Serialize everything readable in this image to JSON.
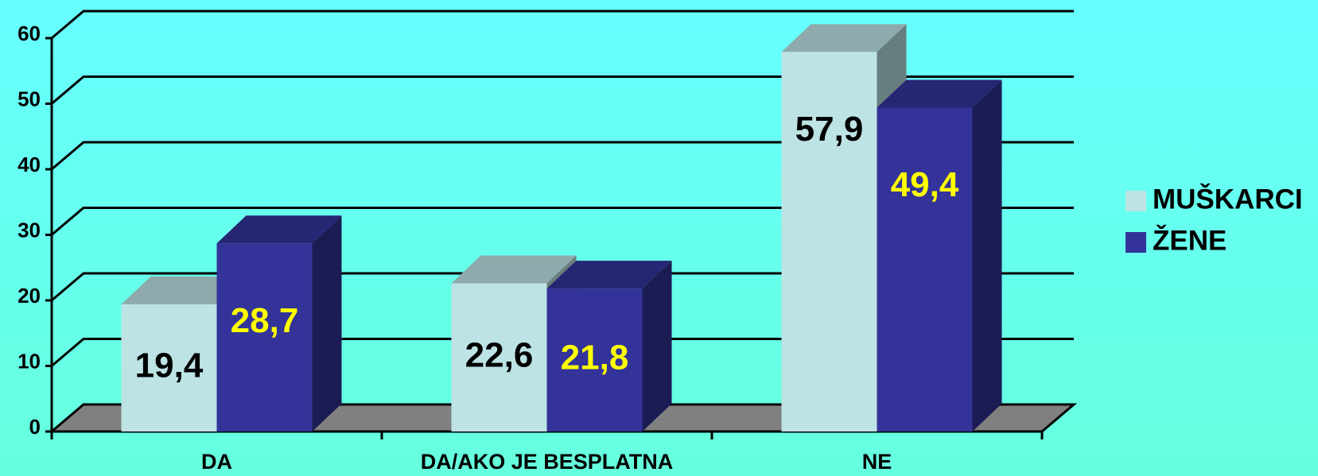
{
  "chart_data": {
    "type": "bar3d",
    "categories": [
      "DA",
      "DA/AKO JE BESPLATNA",
      "NE"
    ],
    "series": [
      {
        "name": "MUŠKARCI",
        "color": "#bde3e5",
        "values": [
          19.4,
          22.6,
          57.9
        ],
        "value_labels": [
          "19,4",
          "22,6",
          "57,9"
        ],
        "label_color": "#000000"
      },
      {
        "name": "ŽENE",
        "color": "#333399",
        "values": [
          28.7,
          21.8,
          49.4
        ],
        "value_labels": [
          "28,7",
          "21,8",
          "49,4"
        ],
        "label_color": "#ffff00"
      }
    ],
    "ylim": [
      0,
      60
    ],
    "yticks": [
      0,
      10,
      20,
      30,
      40,
      50,
      60
    ],
    "grid": true,
    "legend": "right"
  }
}
